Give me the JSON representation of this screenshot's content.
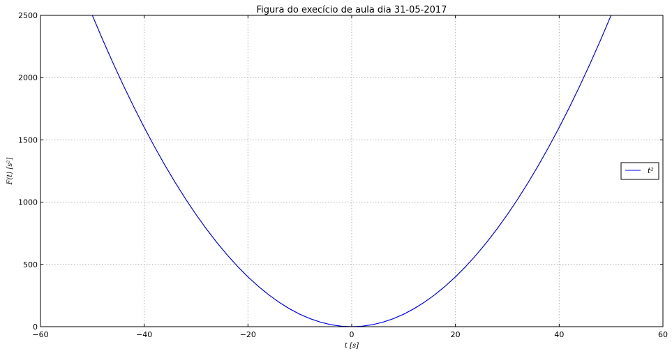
{
  "chart_data": {
    "type": "line",
    "title": "Figura do execício de aula dia 31-05-2017",
    "xlabel": "t [s]",
    "ylabel": "F(t) [s²]",
    "xlim": [
      -60,
      60
    ],
    "ylim": [
      0,
      2500
    ],
    "xticks": [
      -60,
      -40,
      -20,
      0,
      20,
      40,
      60
    ],
    "yticks": [
      0,
      500,
      1000,
      1500,
      2000,
      2500
    ],
    "xtick_labels": [
      "−60",
      "−40",
      "−20",
      "0",
      "20",
      "40",
      "60"
    ],
    "ytick_labels": [
      "0",
      "500",
      "1000",
      "1500",
      "2000",
      "2500"
    ],
    "grid": true,
    "legend_position": "right",
    "series": [
      {
        "name": "t²",
        "color": "#0000ff",
        "x": [
          -50,
          -48,
          -46,
          -44,
          -42,
          -40,
          -38,
          -36,
          -34,
          -32,
          -30,
          -28,
          -26,
          -24,
          -22,
          -20,
          -18,
          -16,
          -14,
          -12,
          -10,
          -8,
          -6,
          -4,
          -2,
          0,
          2,
          4,
          6,
          8,
          10,
          12,
          14,
          16,
          18,
          20,
          22,
          24,
          26,
          28,
          30,
          32,
          34,
          36,
          38,
          40,
          42,
          44,
          46,
          48,
          50
        ],
        "y": [
          2500,
          2304,
          2116,
          1936,
          1764,
          1600,
          1444,
          1296,
          1156,
          1024,
          900,
          784,
          676,
          576,
          484,
          400,
          324,
          256,
          196,
          144,
          100,
          64,
          36,
          16,
          4,
          0,
          4,
          16,
          36,
          64,
          100,
          144,
          196,
          256,
          324,
          400,
          484,
          576,
          676,
          784,
          900,
          1024,
          1156,
          1296,
          1444,
          1600,
          1764,
          1936,
          2116,
          2304,
          2500
        ]
      }
    ]
  }
}
